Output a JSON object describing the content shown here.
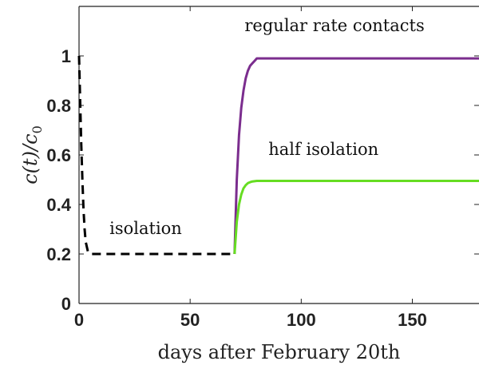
{
  "chart_data": {
    "type": "line",
    "xlabel": "days after February 20th",
    "ylabel": "c(t)/c_0",
    "xlim": [
      0,
      180
    ],
    "ylim": [
      0,
      1.2
    ],
    "xticks": [
      0,
      50,
      100,
      150
    ],
    "yticks": [
      0,
      0.2,
      0.4,
      0.6,
      0.8,
      1
    ],
    "xtick_labels": [
      "0",
      "50",
      "100",
      "150"
    ],
    "ytick_labels": [
      "0",
      "0.2",
      "0.4",
      "0.6",
      "0.8",
      "1"
    ],
    "grid": false,
    "series": [
      {
        "name": "isolation",
        "color": "#000000",
        "style": "dashed",
        "x": [
          0,
          0.5,
          1,
          1.5,
          2,
          2.5,
          3,
          4,
          5,
          10,
          20,
          30,
          40,
          50,
          60,
          70
        ],
        "y": [
          1.0,
          0.82,
          0.64,
          0.5,
          0.38,
          0.3,
          0.25,
          0.21,
          0.2,
          0.2,
          0.2,
          0.2,
          0.2,
          0.2,
          0.2,
          0.2
        ]
      },
      {
        "name": "regular rate contacts",
        "color": "#7b2d8e",
        "style": "solid",
        "x": [
          70,
          71,
          72,
          73,
          74,
          75,
          76,
          77,
          78,
          79,
          80,
          90,
          100,
          120,
          140,
          160,
          180
        ],
        "y": [
          0.2,
          0.5,
          0.68,
          0.79,
          0.86,
          0.91,
          0.94,
          0.96,
          0.97,
          0.98,
          0.99,
          0.99,
          0.99,
          0.99,
          0.99,
          0.99,
          0.99
        ]
      },
      {
        "name": "half isolation",
        "color": "#66dd22",
        "style": "solid",
        "x": [
          70,
          71,
          72,
          73,
          74,
          75,
          76,
          77,
          78,
          80,
          90,
          100,
          120,
          140,
          160,
          180
        ],
        "y": [
          0.2,
          0.33,
          0.4,
          0.44,
          0.465,
          0.478,
          0.486,
          0.49,
          0.493,
          0.495,
          0.495,
          0.495,
          0.495,
          0.495,
          0.495,
          0.495
        ]
      }
    ],
    "annotations": [
      {
        "text": "regular rate contacts",
        "x": 115,
        "y": 1.1
      },
      {
        "text": "half isolation",
        "x": 110,
        "y": 0.6
      },
      {
        "text": "isolation",
        "x": 30,
        "y": 0.28
      }
    ]
  }
}
